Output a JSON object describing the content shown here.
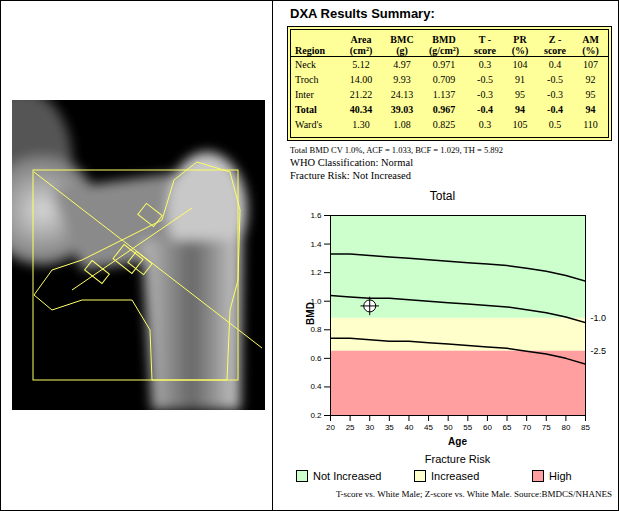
{
  "title": "DXA Results Summary:",
  "table": {
    "columns": [
      [
        "Region"
      ],
      [
        "Area",
        "(cm²)"
      ],
      [
        "BMC",
        "(g)"
      ],
      [
        "BMD",
        "(g/cm²)"
      ],
      [
        "T -",
        "score"
      ],
      [
        "PR",
        "(%)"
      ],
      [
        "Z -",
        "score"
      ],
      [
        "AM",
        "(%)"
      ]
    ],
    "rows": [
      {
        "cells": [
          "Neck",
          "5.12",
          "4.97",
          "0.971",
          "0.3",
          "104",
          "0.4",
          "107"
        ],
        "bold": false
      },
      {
        "cells": [
          "Troch",
          "14.00",
          "9.93",
          "0.709",
          "-0.5",
          "91",
          "-0.5",
          "92"
        ],
        "bold": false
      },
      {
        "cells": [
          "Inter",
          "21.22",
          "24.13",
          "1.137",
          "-0.3",
          "95",
          "-0.3",
          "95"
        ],
        "bold": false
      },
      {
        "cells": [
          "Total",
          "40.34",
          "39.03",
          "0.967",
          "-0.4",
          "94",
          "-0.4",
          "94"
        ],
        "bold": true
      },
      {
        "cells": [
          "Ward's",
          "1.30",
          "1.08",
          "0.825",
          "0.3",
          "105",
          "0.5",
          "110"
        ],
        "bold": false
      }
    ]
  },
  "notes": [
    "Total BMD CV 1.0%, ACF = 1.033, BCF = 1.029, TH = 5.892",
    "WHO Classification: Normal",
    "Fracture Risk: Not Increased"
  ],
  "chart_data": {
    "type": "line",
    "title": "Total",
    "x_label": "Age",
    "y_label": "BMD",
    "x": [
      20,
      25,
      30,
      35,
      40,
      45,
      50,
      55,
      60,
      65,
      70,
      75,
      80,
      85
    ],
    "series": [
      {
        "color": "#000000",
        "values": [
          1.33,
          1.33,
          1.32,
          1.31,
          1.3,
          1.29,
          1.28,
          1.27,
          1.26,
          1.25,
          1.23,
          1.21,
          1.18,
          1.14
        ]
      },
      {
        "color": "#000000",
        "values": [
          1.04,
          1.03,
          1.02,
          1.02,
          1.01,
          1.0,
          0.99,
          0.98,
          0.97,
          0.96,
          0.94,
          0.92,
          0.89,
          0.85
        ]
      },
      {
        "color": "#000000",
        "values": [
          0.74,
          0.74,
          0.73,
          0.72,
          0.72,
          0.71,
          0.7,
          0.69,
          0.68,
          0.67,
          0.65,
          0.63,
          0.6,
          0.56
        ]
      }
    ],
    "points": [
      {
        "x": 30,
        "y": 0.967
      }
    ],
    "marker": "circle-plus",
    "bands": [
      {
        "name": "Not Increased",
        "color": "#ccffcc",
        "from": 0.88,
        "to": 1.6
      },
      {
        "name": "Increased",
        "color": "#ffffcc",
        "from": 0.65,
        "to": 0.88
      },
      {
        "name": "High",
        "color": "#ff9f9f",
        "from": 0.2,
        "to": 0.65
      }
    ],
    "threshold_labels": [
      {
        "value": 0.88,
        "label": "-1.0"
      },
      {
        "value": 0.65,
        "label": "-2.5"
      }
    ],
    "legend": "bottom",
    "legend_title": "Fracture Risk",
    "xlim": [
      20,
      85
    ],
    "xticks": [
      20,
      25,
      30,
      35,
      40,
      45,
      50,
      55,
      60,
      65,
      70,
      75,
      80,
      85
    ],
    "ylim": [
      0.2,
      1.6
    ],
    "yticks": [
      0.2,
      0.4,
      0.6,
      0.8,
      {
        "value": 1,
        "label": "1.0"
      },
      1.2,
      1.4,
      1.6
    ],
    "grid": false
  },
  "footer": "T-score vs. White Male; Z-score vs. White Male. Source:BMDCS/NHANES"
}
